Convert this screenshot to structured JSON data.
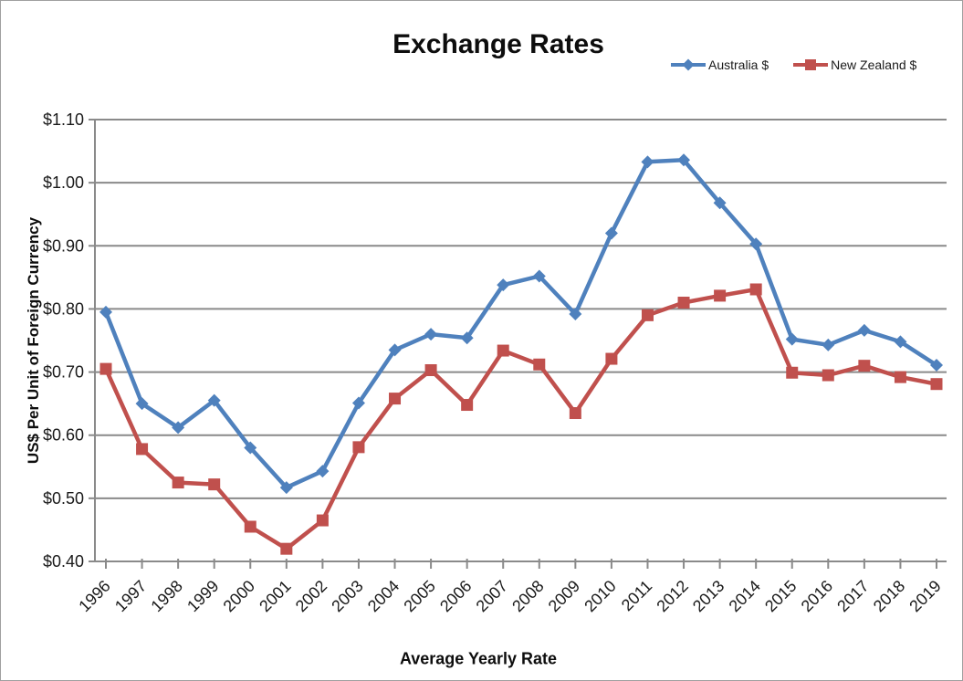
{
  "chart": {
    "title": "Exchange Rates",
    "x_axis": {
      "title": "Average Yearly Rate"
    },
    "y_axis": {
      "title": "US$ Per Unit of Foreign Currency"
    }
  },
  "chart_data": {
    "type": "line",
    "title": "Exchange Rates",
    "xlabel": "Average Yearly Rate",
    "ylabel": "US$ Per Unit of Foreign Currency",
    "categories": [
      "1996",
      "1997",
      "1998",
      "1999",
      "2000",
      "2001",
      "2002",
      "2003",
      "2004",
      "2005",
      "2006",
      "2007",
      "2008",
      "2009",
      "2010",
      "2011",
      "2012",
      "2013",
      "2014",
      "2015",
      "2016",
      "2017",
      "2018",
      "2019"
    ],
    "series": [
      {
        "name": "Australia $",
        "color": "#4F81BD",
        "marker": "diamond",
        "values": [
          0.795,
          0.65,
          0.612,
          0.655,
          0.58,
          0.517,
          0.543,
          0.651,
          0.735,
          0.76,
          0.754,
          0.838,
          0.852,
          0.792,
          0.92,
          1.033,
          1.036,
          0.968,
          0.903,
          0.752,
          0.743,
          0.766,
          0.748,
          0.711
        ]
      },
      {
        "name": "New Zealand $",
        "color": "#C0504D",
        "marker": "square",
        "values": [
          0.705,
          0.578,
          0.525,
          0.522,
          0.455,
          0.42,
          0.465,
          0.581,
          0.658,
          0.703,
          0.648,
          0.734,
          0.712,
          0.635,
          0.721,
          0.79,
          0.81,
          0.821,
          0.831,
          0.699,
          0.695,
          0.71,
          0.692,
          0.681
        ]
      }
    ],
    "ylim": [
      0.4,
      1.1
    ],
    "y_tick_step": 0.1,
    "y_tick_labels": [
      "$0.40",
      "$0.50",
      "$0.60",
      "$0.70",
      "$0.80",
      "$0.90",
      "$1.00",
      "$1.10"
    ],
    "grid": "horizontal-only",
    "legend_position": "top-right",
    "gridline_color": "#8a8a8a",
    "axis_color": "#8a8a8a",
    "tick_label_color": "#1a1a1a"
  }
}
